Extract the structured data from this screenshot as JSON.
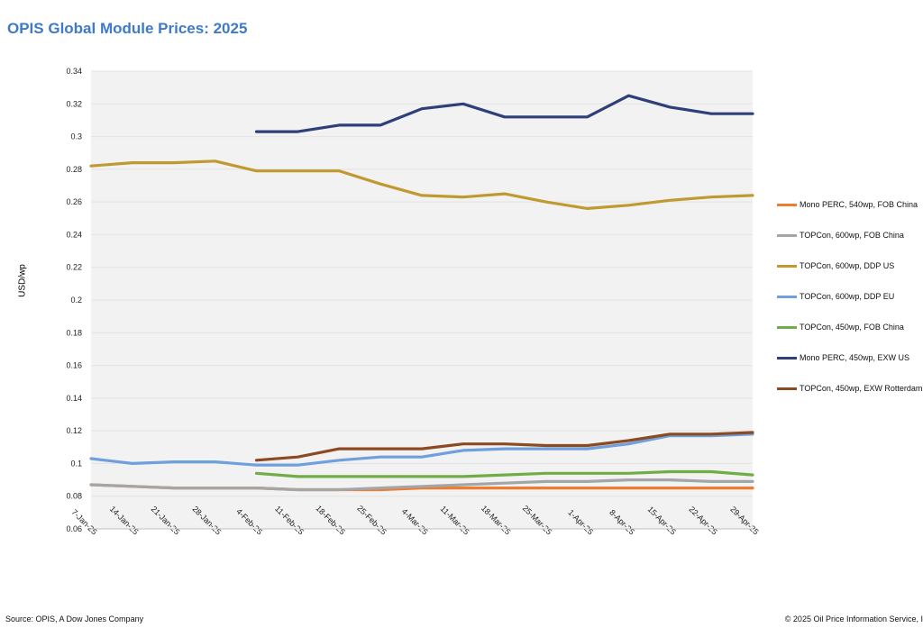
{
  "page": {
    "title": "OPIS Global Module Prices: 2025",
    "source": "Source: OPIS, A Dow Jones Company",
    "copyright": "© 2025 Oil Price Information Service, I"
  },
  "chart_data": {
    "type": "line",
    "title": "OPIS Global Module Prices: 2025",
    "xlabel": "",
    "ylabel": "USD/wp",
    "ylim": [
      0.06,
      0.34
    ],
    "ytick_step": 0.02,
    "grid": true,
    "legend_position": "right",
    "categories": [
      "7-Jan-25",
      "14-Jan-25",
      "21-Jan-25",
      "28-Jan-25",
      "4-Feb-25",
      "11-Feb-25",
      "18-Feb-25",
      "25-Feb-25",
      "4-Mar-25",
      "11-Mar-25",
      "18-Mar-25",
      "25-Mar-25",
      "1-Apr-25",
      "8-Apr-25",
      "15-Apr-25",
      "22-Apr-25",
      "29-Apr-25"
    ],
    "series": [
      {
        "name": "Mono PERC, 540wp, FOB China",
        "color": "#ed7d31",
        "values": [
          0.087,
          0.086,
          0.085,
          0.085,
          0.085,
          0.084,
          0.084,
          0.084,
          0.085,
          0.085,
          0.085,
          0.085,
          0.085,
          0.085,
          0.085,
          0.085,
          0.085
        ]
      },
      {
        "name": "TOPCon, 600wp, FOB China",
        "color": "#a5a5a5",
        "values": [
          0.087,
          0.086,
          0.085,
          0.085,
          0.085,
          0.084,
          0.084,
          0.085,
          0.086,
          0.087,
          0.088,
          0.089,
          0.089,
          0.09,
          0.09,
          0.089,
          0.089
        ]
      },
      {
        "name": "TOPCon, 600wp, DDP US",
        "color": "#c09a30",
        "values": [
          0.282,
          0.284,
          0.284,
          0.285,
          0.279,
          0.279,
          0.279,
          0.271,
          0.264,
          0.263,
          0.265,
          0.26,
          0.256,
          0.258,
          0.261,
          0.263,
          0.264
        ]
      },
      {
        "name": "TOPCon, 600wp, DDP EU",
        "color": "#6f9fdd",
        "values": [
          0.103,
          0.1,
          0.101,
          0.101,
          0.099,
          0.099,
          0.102,
          0.104,
          0.104,
          0.108,
          0.109,
          0.109,
          0.109,
          0.112,
          0.117,
          0.117,
          0.118
        ]
      },
      {
        "name": "TOPCon, 450wp, FOB China",
        "color": "#70ad47",
        "values": [
          null,
          null,
          null,
          null,
          0.094,
          0.092,
          0.092,
          0.092,
          0.092,
          0.092,
          0.093,
          0.094,
          0.094,
          0.094,
          0.095,
          0.095,
          0.093
        ]
      },
      {
        "name": "Mono PERC, 450wp, EXW US",
        "color": "#2e3f7a",
        "values": [
          null,
          null,
          null,
          null,
          0.303,
          0.303,
          0.307,
          0.307,
          0.317,
          0.32,
          0.312,
          0.312,
          0.312,
          0.325,
          0.318,
          0.314,
          0.314
        ]
      },
      {
        "name": "TOPCon, 450wp, EXW Rotterdam",
        "color": "#8b4a21",
        "values": [
          null,
          null,
          null,
          null,
          0.102,
          0.104,
          0.109,
          0.109,
          0.109,
          0.112,
          0.112,
          0.111,
          0.111,
          0.114,
          0.118,
          0.118,
          0.119
        ]
      }
    ]
  }
}
